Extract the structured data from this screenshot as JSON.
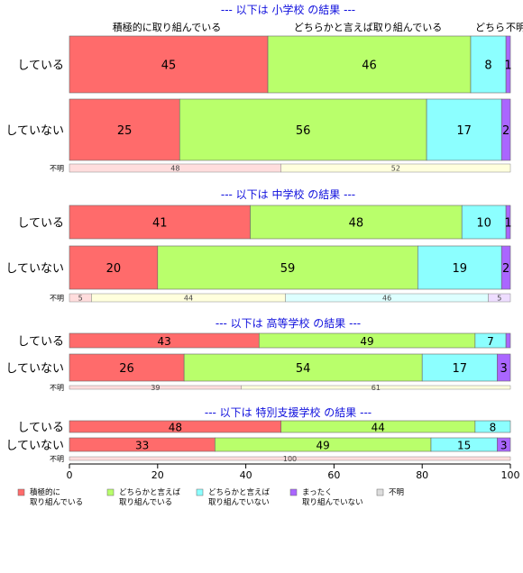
{
  "chart_data": {
    "type": "bar",
    "orientation": "horizontal",
    "stacked": true,
    "xlim": [
      0,
      100
    ],
    "x_ticks": [
      "0",
      "20",
      "40",
      "60",
      "80",
      "100"
    ],
    "top_labels": [
      "積極的に取り組んでいる",
      "どちらかと言えば取り組んでいる",
      "どちら",
      "不明"
    ],
    "legend": {
      "placement": "bottom",
      "entries": [
        {
          "label": "積極的に\n取り組んでいる",
          "color": "#ff6b6b"
        },
        {
          "label": "どちらかと言えば\n取り組んでいる",
          "color": "#b9ff6b"
        },
        {
          "label": "どちらかと言えば\n取り組んでいない",
          "color": "#8cffff"
        },
        {
          "label": "まったく\n取り組んでいない",
          "color": "#aa66ff"
        },
        {
          "label": "不明",
          "color": "#dddddd"
        }
      ]
    },
    "panels": [
      {
        "title": "--- 以下は 小学校 の結果 ---",
        "rows": [
          {
            "label": "している",
            "values": [
              45,
              46,
              8,
              1,
              0
            ],
            "value_labels": [
              "45",
              "46",
              "8",
              "1",
              ""
            ]
          },
          {
            "label": "していない",
            "values": [
              25,
              56,
              17,
              2,
              0
            ],
            "value_labels": [
              "25",
              "56",
              "17",
              "2",
              ""
            ]
          }
        ],
        "unknown": {
          "label": "不明",
          "values": [
            48,
            52,
            0,
            0,
            0
          ],
          "value_labels": [
            "48",
            "52",
            "",
            "",
            ""
          ]
        }
      },
      {
        "title": "--- 以下は 中学校 の結果 ---",
        "rows": [
          {
            "label": "している",
            "values": [
              41,
              48,
              10,
              1,
              0
            ],
            "value_labels": [
              "41",
              "48",
              "10",
              "1",
              ""
            ]
          },
          {
            "label": "していない",
            "values": [
              20,
              59,
              19,
              2,
              0
            ],
            "value_labels": [
              "20",
              "59",
              "19",
              "2",
              ""
            ]
          }
        ],
        "unknown": {
          "label": "不明",
          "values": [
            5,
            44,
            46,
            5,
            0
          ],
          "value_labels": [
            "5",
            "44",
            "46",
            "5",
            ""
          ]
        }
      },
      {
        "title": "--- 以下は 高等学校 の結果 ---",
        "rows": [
          {
            "label": "している",
            "values": [
              43,
              49,
              7,
              1,
              0
            ],
            "value_labels": [
              "43",
              "49",
              "7",
              "",
              ""
            ]
          },
          {
            "label": "していない",
            "values": [
              26,
              54,
              17,
              3,
              0
            ],
            "value_labels": [
              "26",
              "54",
              "17",
              "3",
              ""
            ]
          }
        ],
        "unknown": {
          "label": "不明",
          "values": [
            39,
            61,
            0,
            0,
            0
          ],
          "value_labels": [
            "39",
            "61",
            "",
            "",
            ""
          ]
        }
      },
      {
        "title": "--- 以下は 特別支援学校 の結果 ---",
        "rows": [
          {
            "label": "している",
            "values": [
              48,
              44,
              8,
              0,
              0
            ],
            "value_labels": [
              "48",
              "44",
              "8",
              "",
              ""
            ]
          },
          {
            "label": "していない",
            "values": [
              33,
              49,
              15,
              3,
              0
            ],
            "value_labels": [
              "33",
              "49",
              "15",
              "3",
              ""
            ]
          }
        ],
        "unknown": {
          "label": "不明",
          "values": [
            100,
            0,
            0,
            0,
            0
          ],
          "value_labels": [
            "100",
            "",
            "",
            "",
            ""
          ]
        }
      }
    ]
  }
}
